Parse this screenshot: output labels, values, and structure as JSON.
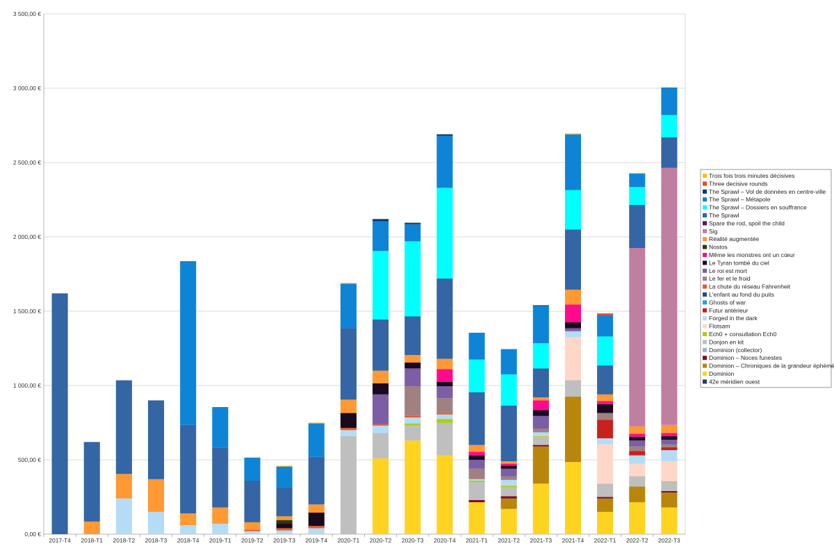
{
  "chart_data": {
    "type": "bar",
    "stacked": true,
    "grid": true,
    "legend_position": "right",
    "ylim": [
      0,
      3500
    ],
    "yticks": [
      "0,00 €",
      "500,00 €",
      "1 000,00 €",
      "1 500,00 €",
      "2 000,00 €",
      "2 500,00 €",
      "3 000,00 €",
      "3 500,00 €"
    ],
    "categories": [
      "2017-T4",
      "2018-T1",
      "2018-T2",
      "2018-T3",
      "2018-T4",
      "2019-T1",
      "2019-T2",
      "2019-T3",
      "2019-T4",
      "2020-T1",
      "2020-T2",
      "2020-T3",
      "2020-T4",
      "2021-T1",
      "2021-T2",
      "2021-T3",
      "2021-T4",
      "2022-T1",
      "2022-T2",
      "2022-T3"
    ],
    "series": [
      {
        "name": "42e méridien ouest",
        "color": "#1f3d66",
        "values": [
          0,
          0,
          0,
          0,
          0,
          0,
          0,
          0,
          0,
          0,
          0,
          0,
          0,
          0,
          0,
          0,
          0,
          0,
          0,
          0
        ]
      },
      {
        "name": "Dominion",
        "color": "#ffd320",
        "values": [
          0,
          0,
          0,
          0,
          0,
          0,
          0,
          0,
          0,
          0,
          510,
          630,
          530,
          215,
          170,
          340,
          485,
          150,
          215,
          180
        ]
      },
      {
        "name": "Dominion – Chroniques de la grandeur éphémère",
        "color": "#b8860b",
        "values": [
          0,
          0,
          0,
          0,
          0,
          0,
          0,
          0,
          0,
          0,
          0,
          0,
          0,
          0,
          70,
          250,
          440,
          90,
          105,
          100
        ]
      },
      {
        "name": "Dominion – Noces funestes",
        "color": "#7f0a2a",
        "values": [
          0,
          0,
          0,
          0,
          0,
          0,
          0,
          0,
          0,
          0,
          0,
          0,
          0,
          15,
          15,
          10,
          0,
          10,
          0,
          10
        ]
      },
      {
        "name": "Dominion (collector)",
        "color": "#9fb3c8",
        "values": [
          0,
          0,
          0,
          0,
          0,
          0,
          0,
          0,
          0,
          0,
          0,
          0,
          0,
          0,
          0,
          0,
          0,
          0,
          0,
          0
        ]
      },
      {
        "name": "Donjon en kit",
        "color": "#bfbfbf",
        "values": [
          0,
          0,
          0,
          0,
          0,
          0,
          0,
          0,
          0,
          660,
          170,
          100,
          220,
          120,
          60,
          55,
          110,
          90,
          70,
          60
        ]
      },
      {
        "name": "Ech0 + consultation Ech0",
        "color": "#aecf00",
        "values": [
          0,
          0,
          0,
          0,
          0,
          0,
          0,
          0,
          0,
          0,
          0,
          15,
          25,
          10,
          10,
          5,
          0,
          0,
          0,
          5
        ]
      },
      {
        "name": "Flotsam",
        "color": "#ffd7c9",
        "values": [
          0,
          0,
          0,
          0,
          0,
          0,
          0,
          0,
          0,
          0,
          0,
          0,
          0,
          0,
          0,
          0,
          290,
          265,
          85,
          135
        ]
      },
      {
        "name": "Forged in the dark",
        "color": "#b4dcf5",
        "values": [
          0,
          0,
          240,
          150,
          60,
          70,
          20,
          25,
          40,
          40,
          50,
          40,
          30,
          10,
          40,
          25,
          40,
          40,
          55,
          75
        ]
      },
      {
        "name": "Futur antérieur",
        "color": "#c9211e",
        "values": [
          0,
          0,
          0,
          0,
          0,
          0,
          0,
          0,
          0,
          0,
          0,
          0,
          0,
          0,
          0,
          0,
          0,
          125,
          30,
          20
        ]
      },
      {
        "name": "Ghosts of war",
        "color": "#2a9fd6",
        "values": [
          0,
          0,
          0,
          0,
          0,
          0,
          0,
          0,
          0,
          0,
          0,
          0,
          0,
          0,
          0,
          0,
          0,
          0,
          0,
          0
        ]
      },
      {
        "name": "L'enfant au fond du puits",
        "color": "#1f4e79",
        "values": [
          0,
          0,
          0,
          0,
          0,
          0,
          0,
          0,
          0,
          0,
          0,
          0,
          0,
          0,
          0,
          0,
          0,
          0,
          0,
          0
        ]
      },
      {
        "name": "La chute du réseau Fahrenheit",
        "color": "#ea5a28",
        "values": [
          0,
          0,
          0,
          0,
          0,
          0,
          10,
          15,
          15,
          15,
          10,
          10,
          10,
          0,
          0,
          0,
          0,
          0,
          0,
          0
        ]
      },
      {
        "name": "Le fer et le froid",
        "color": "#a08080",
        "values": [
          0,
          0,
          0,
          0,
          0,
          0,
          0,
          0,
          0,
          0,
          0,
          200,
          100,
          70,
          25,
          25,
          0,
          45,
          30,
          20
        ]
      },
      {
        "name": "Le roi est mort",
        "color": "#7a5ea6",
        "values": [
          0,
          0,
          0,
          0,
          0,
          0,
          0,
          0,
          0,
          0,
          200,
          120,
          80,
          60,
          50,
          85,
          20,
          0,
          40,
          30
        ]
      },
      {
        "name": "Le Tyran tombé du ciel",
        "color": "#1a0a1e",
        "values": [
          0,
          0,
          0,
          0,
          0,
          0,
          0,
          30,
          90,
          100,
          75,
          40,
          30,
          30,
          20,
          40,
          40,
          60,
          25,
          25
        ]
      },
      {
        "name": "Même les monstres ont un cœur",
        "color": "#ff0a8c",
        "values": [
          0,
          0,
          0,
          0,
          0,
          0,
          0,
          0,
          0,
          0,
          0,
          0,
          85,
          25,
          15,
          65,
          120,
          20,
          20,
          20
        ]
      },
      {
        "name": "Nostos",
        "color": "#2b3a0b",
        "values": [
          0,
          0,
          0,
          0,
          0,
          0,
          0,
          25,
          0,
          0,
          0,
          0,
          0,
          0,
          0,
          0,
          0,
          0,
          0,
          0
        ]
      },
      {
        "name": "Réalité augmentée",
        "color": "#ff9933",
        "values": [
          0,
          85,
          165,
          220,
          80,
          110,
          50,
          25,
          55,
          90,
          85,
          50,
          70,
          45,
          15,
          20,
          100,
          45,
          50,
          55
        ]
      },
      {
        "name": "Sig",
        "color": "#c07fa0",
        "values": [
          0,
          0,
          0,
          0,
          0,
          0,
          0,
          0,
          0,
          0,
          0,
          0,
          0,
          0,
          0,
          0,
          0,
          0,
          1200,
          1730
        ]
      },
      {
        "name": "Spare the rod, spoil the child",
        "color": "#4b1f4d",
        "values": [
          0,
          0,
          0,
          0,
          0,
          0,
          0,
          0,
          0,
          0,
          0,
          0,
          0,
          0,
          0,
          0,
          0,
          0,
          0,
          0
        ]
      },
      {
        "name": "The Sprawl",
        "color": "#3465a4",
        "values": [
          1620,
          535,
          630,
          530,
          595,
          400,
          280,
          195,
          320,
          480,
          345,
          260,
          540,
          355,
          375,
          195,
          405,
          195,
          290,
          205
        ]
      },
      {
        "name": "The Sprawl – Dossiers en souffrance",
        "color": "#00ffff",
        "values": [
          0,
          0,
          0,
          0,
          0,
          0,
          0,
          0,
          0,
          0,
          460,
          505,
          610,
          220,
          210,
          170,
          265,
          195,
          120,
          150
        ]
      },
      {
        "name": "The Sprawl – Métapole",
        "color": "#0e84d6",
        "values": [
          0,
          0,
          0,
          0,
          1095,
          275,
          155,
          140,
          225,
          300,
          200,
          115,
          350,
          180,
          170,
          250,
          375,
          145,
          90,
          185
        ]
      },
      {
        "name": "The Sprawl – Vol de données en centre-ville",
        "color": "#0a3d6e",
        "values": [
          0,
          0,
          0,
          0,
          5,
          0,
          0,
          0,
          0,
          0,
          15,
          10,
          10,
          0,
          0,
          5,
          0,
          0,
          0,
          0
        ]
      },
      {
        "name": "Three decisive rounds",
        "color": "#ff420e",
        "values": [
          0,
          0,
          0,
          0,
          0,
          0,
          0,
          0,
          0,
          0,
          0,
          0,
          0,
          0,
          0,
          0,
          0,
          10,
          0,
          0
        ]
      },
      {
        "name": "Trois fois trois minutes décisives",
        "color": "#ffbf00",
        "values": [
          0,
          0,
          0,
          0,
          0,
          0,
          0,
          5,
          5,
          5,
          0,
          0,
          0,
          0,
          0,
          0,
          5,
          0,
          5,
          0
        ]
      }
    ]
  }
}
